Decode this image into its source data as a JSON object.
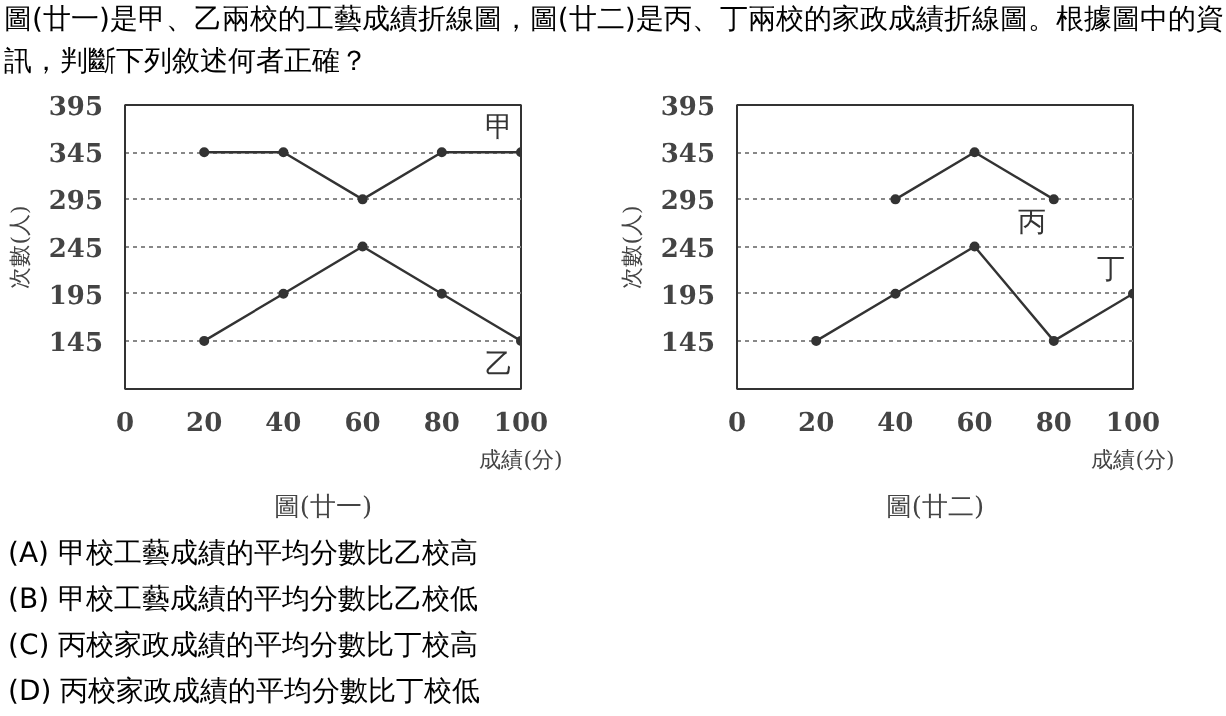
{
  "chart_data": [
    {
      "type": "line",
      "title": "圖(廿一)",
      "xlabel": "成績(分)",
      "ylabel": "次數(人)",
      "x": [
        20,
        40,
        60,
        80,
        100
      ],
      "series": [
        {
          "name": "甲",
          "color": "#333333",
          "values": [
            345,
            345,
            295,
            345,
            345
          ]
        },
        {
          "name": "乙",
          "color": "#333333",
          "values": [
            145,
            195,
            245,
            195,
            145
          ]
        }
      ],
      "xlim": [
        0,
        100
      ],
      "xticks": [
        0,
        20,
        40,
        60,
        80,
        100
      ],
      "ylim": [
        94,
        395
      ],
      "yticks": [
        145,
        195,
        245,
        295,
        345,
        395
      ],
      "grid": "y",
      "marker": "circle",
      "line_style": "solid",
      "annotations": [
        "圖(廿一)是甲、乙兩校的工藝成績折線圖，圖(廿二)是丙、丁兩校的家政成績折線圖。根據圖中的資訊，判斷下列敘述何者正確？",
        "(A) 甲校工藝成績的平均分數比乙校高",
        "(B) 甲校工藝成績的平均分數比乙校低",
        "(C) 丙校家政成績的平均分數比丁校高",
        "(D) 丙校家政成績的平均分數比丁校低"
      ]
    },
    {
      "type": "line",
      "title": "圖(廿二)",
      "xlabel": "成績(分)",
      "ylabel": "次數(人)",
      "x": [
        20,
        40,
        60,
        80,
        100
      ],
      "series": [
        {
          "name": "丙",
          "color": "#333333",
          "values": [
            null,
            295,
            345,
            295,
            null
          ]
        },
        {
          "name": "丁",
          "color": "#333333",
          "values": [
            145,
            195,
            245,
            145,
            195
          ]
        }
      ],
      "xlim": [
        0,
        100
      ],
      "xticks": [
        0,
        20,
        40,
        60,
        80,
        100
      ],
      "ylim": [
        94,
        395
      ],
      "yticks": [
        145,
        195,
        245,
        295,
        345,
        395
      ],
      "grid": "y",
      "marker": "circle",
      "line_style": "solid"
    }
  ]
}
